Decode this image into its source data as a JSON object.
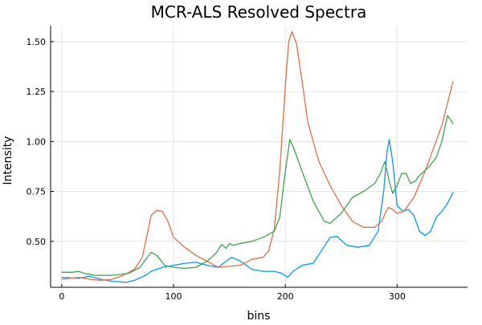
{
  "chart_data": {
    "type": "line",
    "title": "MCR-ALS Resolved Spectra",
    "xlabel": "bins",
    "ylabel": "Intensity",
    "xlim": [
      -10,
      363
    ],
    "ylim": [
      0.27,
      1.58
    ],
    "x_ticks": [
      0,
      100,
      200,
      300
    ],
    "x_tick_labels": [
      "0",
      "100",
      "200",
      "300"
    ],
    "y_ticks": [
      0.5,
      0.75,
      1.0,
      1.25,
      1.5
    ],
    "y_tick_labels": [
      "0.50",
      "0.75",
      "1.00",
      "1.25",
      "1.50"
    ],
    "grid": true,
    "legend": "none",
    "series": [
      {
        "color": "#009af9",
        "points": [
          [
            0,
            0.32
          ],
          [
            15,
            0.315
          ],
          [
            25,
            0.325
          ],
          [
            35,
            0.31
          ],
          [
            45,
            0.3
          ],
          [
            58,
            0.295
          ],
          [
            65,
            0.305
          ],
          [
            75,
            0.33
          ],
          [
            80,
            0.35
          ],
          [
            90,
            0.37
          ],
          [
            100,
            0.38
          ],
          [
            110,
            0.39
          ],
          [
            120,
            0.395
          ],
          [
            130,
            0.38
          ],
          [
            140,
            0.37
          ],
          [
            148,
            0.405
          ],
          [
            152,
            0.42
          ],
          [
            160,
            0.4
          ],
          [
            170,
            0.36
          ],
          [
            180,
            0.35
          ],
          [
            190,
            0.35
          ],
          [
            197,
            0.34
          ],
          [
            202,
            0.32
          ],
          [
            207,
            0.35
          ],
          [
            215,
            0.38
          ],
          [
            225,
            0.39
          ],
          [
            232,
            0.45
          ],
          [
            240,
            0.52
          ],
          [
            246,
            0.525
          ],
          [
            255,
            0.48
          ],
          [
            265,
            0.47
          ],
          [
            275,
            0.48
          ],
          [
            283,
            0.55
          ],
          [
            288,
            0.75
          ],
          [
            291,
            0.95
          ],
          [
            293,
            1.01
          ],
          [
            296,
            0.9
          ],
          [
            300,
            0.68
          ],
          [
            305,
            0.65
          ],
          [
            310,
            0.66
          ],
          [
            315,
            0.63
          ],
          [
            320,
            0.55
          ],
          [
            325,
            0.53
          ],
          [
            330,
            0.55
          ],
          [
            335,
            0.62
          ],
          [
            340,
            0.65
          ],
          [
            345,
            0.69
          ],
          [
            350,
            0.745
          ]
        ]
      },
      {
        "color": "#e26f46",
        "points": [
          [
            0,
            0.31
          ],
          [
            15,
            0.32
          ],
          [
            25,
            0.31
          ],
          [
            35,
            0.305
          ],
          [
            45,
            0.31
          ],
          [
            55,
            0.33
          ],
          [
            65,
            0.36
          ],
          [
            72,
            0.42
          ],
          [
            77,
            0.55
          ],
          [
            80,
            0.63
          ],
          [
            85,
            0.655
          ],
          [
            90,
            0.65
          ],
          [
            95,
            0.6
          ],
          [
            100,
            0.52
          ],
          [
            110,
            0.47
          ],
          [
            120,
            0.43
          ],
          [
            130,
            0.4
          ],
          [
            140,
            0.37
          ],
          [
            150,
            0.375
          ],
          [
            160,
            0.38
          ],
          [
            170,
            0.41
          ],
          [
            180,
            0.42
          ],
          [
            185,
            0.45
          ],
          [
            190,
            0.56
          ],
          [
            195,
            0.85
          ],
          [
            200,
            1.28
          ],
          [
            203,
            1.5
          ],
          [
            206,
            1.55
          ],
          [
            210,
            1.49
          ],
          [
            215,
            1.3
          ],
          [
            220,
            1.1
          ],
          [
            230,
            0.9
          ],
          [
            240,
            0.78
          ],
          [
            250,
            0.68
          ],
          [
            260,
            0.6
          ],
          [
            270,
            0.57
          ],
          [
            280,
            0.57
          ],
          [
            286,
            0.6
          ],
          [
            292,
            0.67
          ],
          [
            296,
            0.66
          ],
          [
            300,
            0.64
          ],
          [
            306,
            0.65
          ],
          [
            315,
            0.72
          ],
          [
            325,
            0.85
          ],
          [
            340,
            1.08
          ],
          [
            350,
            1.3
          ]
        ]
      },
      {
        "color": "#3da44d",
        "points": [
          [
            0,
            0.345
          ],
          [
            10,
            0.345
          ],
          [
            15,
            0.35
          ],
          [
            20,
            0.34
          ],
          [
            30,
            0.33
          ],
          [
            45,
            0.33
          ],
          [
            60,
            0.34
          ],
          [
            70,
            0.37
          ],
          [
            75,
            0.41
          ],
          [
            80,
            0.445
          ],
          [
            85,
            0.43
          ],
          [
            92,
            0.38
          ],
          [
            100,
            0.37
          ],
          [
            110,
            0.365
          ],
          [
            120,
            0.37
          ],
          [
            130,
            0.4
          ],
          [
            138,
            0.44
          ],
          [
            143,
            0.485
          ],
          [
            147,
            0.465
          ],
          [
            150,
            0.49
          ],
          [
            153,
            0.48
          ],
          [
            160,
            0.49
          ],
          [
            170,
            0.5
          ],
          [
            180,
            0.52
          ],
          [
            190,
            0.55
          ],
          [
            195,
            0.62
          ],
          [
            200,
            0.85
          ],
          [
            204,
            1.01
          ],
          [
            208,
            0.96
          ],
          [
            215,
            0.85
          ],
          [
            225,
            0.7
          ],
          [
            235,
            0.6
          ],
          [
            240,
            0.59
          ],
          [
            250,
            0.64
          ],
          [
            260,
            0.72
          ],
          [
            270,
            0.75
          ],
          [
            280,
            0.79
          ],
          [
            285,
            0.84
          ],
          [
            289,
            0.9
          ],
          [
            293,
            0.8
          ],
          [
            296,
            0.74
          ],
          [
            300,
            0.78
          ],
          [
            304,
            0.84
          ],
          [
            308,
            0.84
          ],
          [
            312,
            0.79
          ],
          [
            316,
            0.8
          ],
          [
            320,
            0.83
          ],
          [
            328,
            0.87
          ],
          [
            335,
            0.92
          ],
          [
            340,
            1.0
          ],
          [
            345,
            1.13
          ],
          [
            350,
            1.09
          ]
        ]
      }
    ]
  }
}
